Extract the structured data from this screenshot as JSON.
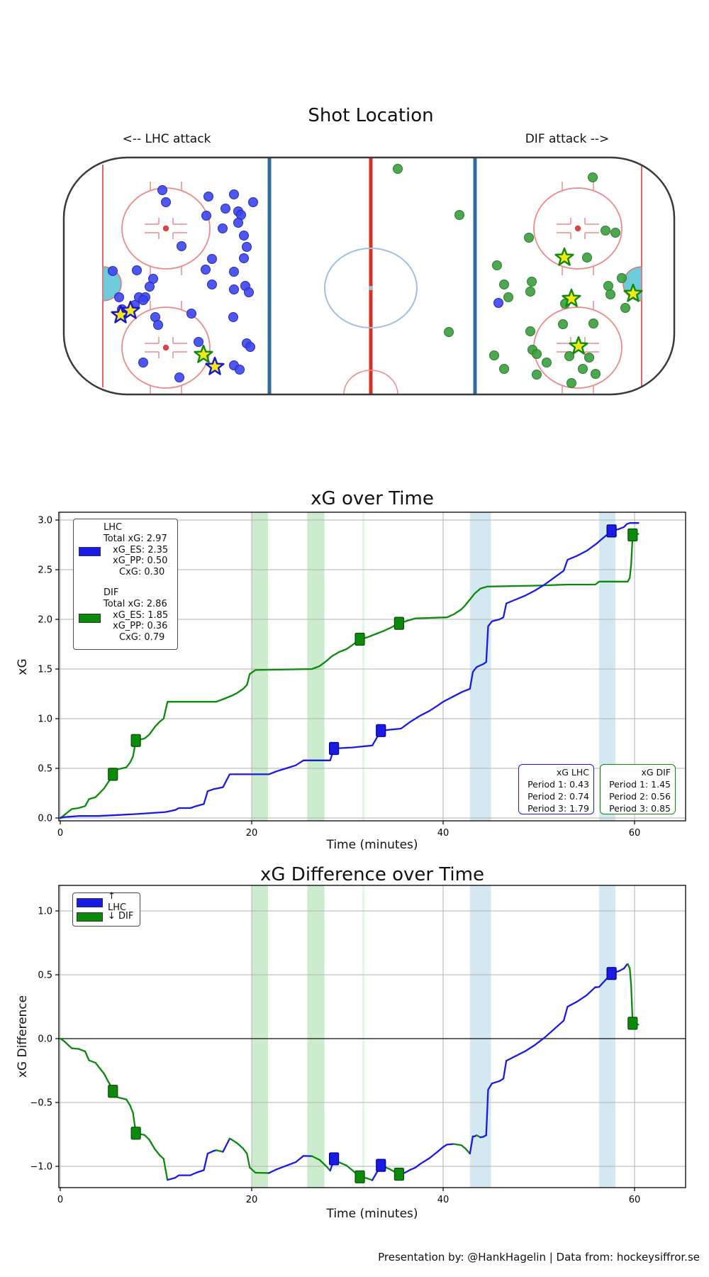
{
  "page": {
    "title_shot": "Shot Location",
    "lhc_attack_label": "<-- LHC attack",
    "dif_attack_label": "DIF attack -->",
    "footer": "Presentation by: @HankHagelin | Data from: hockeysiffror.se"
  },
  "colors": {
    "lhc": "#1a1ae6",
    "lhc_edge": "#00008b",
    "dif": "#0c8a0c",
    "dif_edge": "#064d06",
    "shot_lhc": "#3c45ef",
    "shot_lhc_edge": "#2a2ab8",
    "shot_dif": "#38a03c",
    "shot_dif_edge": "#2d7a30",
    "star_fill": "#f5e616",
    "band_green": "#cdeccd",
    "band_green_thin": "#e4f6e4",
    "band_blue": "#d3e8f1",
    "grid": "#b3b3b3",
    "rink_border": "#3a3a3a",
    "rink_red": "#e06666",
    "rink_faceoff": "#ef8a8a",
    "rink_blue_line": "#2e6b9e",
    "rink_center_line": "#d93025",
    "rink_center_circle": "#9fc0e0",
    "crease_fill": "#6fcbdc",
    "crease_edge": "#dd7777"
  },
  "rink": {
    "shots_lhc": [
      [
        229,
        268
      ],
      [
        234,
        285
      ],
      [
        294,
        277
      ],
      [
        330,
        274
      ],
      [
        357,
        285
      ],
      [
        318,
        294
      ],
      [
        336,
        298
      ],
      [
        340,
        303
      ],
      [
        291,
        304
      ],
      [
        336,
        314
      ],
      [
        314,
        322
      ],
      [
        344,
        332
      ],
      [
        256,
        347
      ],
      [
        348,
        348
      ],
      [
        344,
        364
      ],
      [
        299,
        365
      ],
      [
        290,
        380
      ],
      [
        330,
        383
      ],
      [
        159,
        382
      ],
      [
        193,
        381
      ],
      [
        216,
        393
      ],
      [
        299,
        401
      ],
      [
        211,
        404
      ],
      [
        346,
        403
      ],
      [
        330,
        408
      ],
      [
        351,
        412
      ],
      [
        168,
        419
      ],
      [
        196,
        419
      ],
      [
        205,
        419
      ],
      [
        202,
        423
      ],
      [
        172,
        436
      ],
      [
        190,
        430
      ],
      [
        270,
        442
      ],
      [
        219,
        447
      ],
      [
        329,
        447
      ],
      [
        223,
        458
      ],
      [
        280,
        482
      ],
      [
        348,
        484
      ],
      [
        353,
        489
      ],
      [
        202,
        511
      ],
      [
        330,
        515
      ],
      [
        338,
        521
      ],
      [
        253,
        532
      ],
      [
        703,
        427
      ]
    ],
    "shots_dif": [
      [
        561,
        238
      ],
      [
        648,
        303
      ],
      [
        836,
        250
      ],
      [
        854,
        325
      ],
      [
        868,
        328
      ],
      [
        746,
        335
      ],
      [
        828,
        363
      ],
      [
        701,
        374
      ],
      [
        711,
        401
      ],
      [
        750,
        397
      ],
      [
        748,
        411
      ],
      [
        717,
        419
      ],
      [
        858,
        403
      ],
      [
        877,
        392
      ],
      [
        861,
        415
      ],
      [
        882,
        434
      ],
      [
        797,
        428
      ],
      [
        794,
        457
      ],
      [
        837,
        456
      ],
      [
        748,
        467
      ],
      [
        633,
        468
      ],
      [
        697,
        501
      ],
      [
        751,
        493
      ],
      [
        757,
        499
      ],
      [
        803,
        502
      ],
      [
        831,
        504
      ],
      [
        771,
        511
      ],
      [
        711,
        520
      ],
      [
        822,
        520
      ],
      [
        757,
        528
      ],
      [
        840,
        527
      ],
      [
        806,
        540
      ]
    ],
    "goals_lhc": [
      [
        170,
        444
      ],
      [
        184,
        438
      ],
      [
        303,
        517
      ]
    ],
    "goals_dif": [
      [
        287,
        500
      ],
      [
        796,
        363
      ],
      [
        806,
        421
      ],
      [
        893,
        414
      ],
      [
        816,
        488
      ]
    ]
  },
  "chart_data": [
    {
      "type": "line",
      "title": "xG over Time",
      "xlabel": "Time (minutes)",
      "ylabel": "xG",
      "xlim": [
        -0.15,
        65.3
      ],
      "ylim": [
        -0.03,
        3.08
      ],
      "grid": true,
      "legend_position": "upper left",
      "xticks": {
        "values": [
          0,
          20,
          40,
          60
        ],
        "labels": [
          "0",
          "20",
          "40",
          "60"
        ]
      },
      "yticks": {
        "values": [
          0,
          0.5,
          1,
          1.5,
          2,
          2.5,
          3
        ],
        "labels": [
          "0.0",
          "0.5",
          "1.0",
          "1.5",
          "2.0",
          "2.5",
          "3.0"
        ]
      },
      "bands": [
        {
          "x0": 20.0,
          "x1": 21.7,
          "color": "band_green"
        },
        {
          "x0": 25.8,
          "x1": 27.6,
          "color": "band_green"
        },
        {
          "x0": 31.55,
          "x1": 31.8,
          "color": "band_green_thin"
        },
        {
          "x0": 42.8,
          "x1": 45.0,
          "color": "band_blue"
        },
        {
          "x0": 56.3,
          "x1": 58.0,
          "color": "band_blue"
        }
      ],
      "series": [
        {
          "name": "LHC",
          "color": "lhc",
          "edge": "lhc_edge",
          "goal_times": [
            28.6,
            33.5,
            57.6
          ],
          "points": [
            [
              0,
              0
            ],
            [
              0.5,
              0.01
            ],
            [
              2,
              0.02
            ],
            [
              4,
              0.02
            ],
            [
              6,
              0.03
            ],
            [
              8,
              0.04
            ],
            [
              9.5,
              0.05
            ],
            [
              11,
              0.06
            ],
            [
              12,
              0.08
            ],
            [
              12.4,
              0.1
            ],
            [
              13.6,
              0.1
            ],
            [
              14.2,
              0.12
            ],
            [
              15,
              0.14
            ],
            [
              15.4,
              0.27
            ],
            [
              16,
              0.29
            ],
            [
              17,
              0.31
            ],
            [
              17.7,
              0.44
            ],
            [
              21.8,
              0.44
            ],
            [
              22.6,
              0.47
            ],
            [
              23.6,
              0.5
            ],
            [
              24.6,
              0.53
            ],
            [
              25.4,
              0.58
            ],
            [
              28.2,
              0.58
            ],
            [
              28.6,
              0.7
            ],
            [
              30.5,
              0.71
            ],
            [
              32.6,
              0.73
            ],
            [
              33.5,
              0.88
            ],
            [
              35.6,
              0.9
            ],
            [
              36.6,
              0.97
            ],
            [
              37.6,
              1.03
            ],
            [
              38.6,
              1.08
            ],
            [
              39.4,
              1.13
            ],
            [
              40,
              1.17
            ],
            [
              41,
              1.22
            ],
            [
              42,
              1.27
            ],
            [
              42.8,
              1.3
            ],
            [
              43.1,
              1.47
            ],
            [
              43.5,
              1.52
            ],
            [
              44.2,
              1.55
            ],
            [
              44.5,
              1.57
            ],
            [
              44.7,
              1.93
            ],
            [
              45.1,
              1.98
            ],
            [
              45.9,
              2.0
            ],
            [
              46.3,
              2.02
            ],
            [
              46.6,
              2.16
            ],
            [
              47.6,
              2.2
            ],
            [
              48.6,
              2.24
            ],
            [
              49.6,
              2.29
            ],
            [
              50.6,
              2.35
            ],
            [
              51.6,
              2.42
            ],
            [
              52.6,
              2.49
            ],
            [
              53,
              2.6
            ],
            [
              54,
              2.64
            ],
            [
              55,
              2.69
            ],
            [
              56,
              2.76
            ],
            [
              56.6,
              2.81
            ],
            [
              57.1,
              2.85
            ],
            [
              57.6,
              2.89
            ],
            [
              58.4,
              2.91
            ],
            [
              58.9,
              2.93
            ],
            [
              59.2,
              2.96
            ],
            [
              59.5,
              2.97
            ],
            [
              60.4,
              2.97
            ]
          ]
        },
        {
          "name": "DIF",
          "color": "dif",
          "edge": "dif_edge",
          "goal_times": [
            5.5,
            7.9,
            31.3,
            35.4,
            59.8
          ],
          "points": [
            [
              0,
              0
            ],
            [
              0.3,
              0.02
            ],
            [
              0.8,
              0.06
            ],
            [
              1.2,
              0.09
            ],
            [
              1.9,
              0.1
            ],
            [
              2.6,
              0.12
            ],
            [
              3.0,
              0.19
            ],
            [
              3.7,
              0.21
            ],
            [
              4.2,
              0.26
            ],
            [
              4.6,
              0.3
            ],
            [
              5.0,
              0.36
            ],
            [
              5.3,
              0.4
            ],
            [
              5.5,
              0.44
            ],
            [
              6.0,
              0.49
            ],
            [
              6.9,
              0.51
            ],
            [
              7.3,
              0.56
            ],
            [
              7.6,
              0.62
            ],
            [
              7.9,
              0.78
            ],
            [
              8.8,
              0.8
            ],
            [
              9.3,
              0.84
            ],
            [
              9.9,
              0.92
            ],
            [
              10.4,
              0.97
            ],
            [
              10.8,
              1.0
            ],
            [
              11.2,
              1.17
            ],
            [
              16.3,
              1.17
            ],
            [
              17.1,
              1.2
            ],
            [
              17.9,
              1.23
            ],
            [
              18.5,
              1.26
            ],
            [
              19.1,
              1.3
            ],
            [
              19.5,
              1.34
            ],
            [
              19.8,
              1.45
            ],
            [
              20.4,
              1.49
            ],
            [
              26.3,
              1.5
            ],
            [
              27.1,
              1.53
            ],
            [
              27.8,
              1.58
            ],
            [
              28.4,
              1.63
            ],
            [
              29.1,
              1.67
            ],
            [
              29.9,
              1.7
            ],
            [
              30.5,
              1.74
            ],
            [
              31.3,
              1.8
            ],
            [
              32.1,
              1.82
            ],
            [
              32.9,
              1.85
            ],
            [
              33.7,
              1.88
            ],
            [
              34.4,
              1.91
            ],
            [
              35.4,
              1.96
            ],
            [
              36.4,
              1.99
            ],
            [
              37.1,
              2.01
            ],
            [
              40.4,
              2.02
            ],
            [
              41.1,
              2.05
            ],
            [
              41.9,
              2.1
            ],
            [
              42.3,
              2.14
            ],
            [
              42.8,
              2.2
            ],
            [
              43.3,
              2.26
            ],
            [
              43.9,
              2.31
            ],
            [
              44.6,
              2.33
            ],
            [
              50,
              2.34
            ],
            [
              53,
              2.35
            ],
            [
              55.9,
              2.35
            ],
            [
              56.3,
              2.38
            ],
            [
              59.3,
              2.38
            ],
            [
              59.5,
              2.42
            ],
            [
              59.65,
              2.56
            ],
            [
              59.8,
              2.85
            ],
            [
              60.4,
              2.86
            ]
          ]
        }
      ],
      "legend_stats": {
        "lhc": [
          "LHC",
          "Total xG: 2.97",
          "xG_ES: 2.35",
          "xG_PP: 0.50",
          "CxG: 0.30"
        ],
        "dif": [
          "DIF",
          "Total xG: 2.86",
          "xG_ES: 1.85",
          "xG_PP: 0.36",
          "CxG: 0.79"
        ]
      },
      "period_boxes": [
        {
          "title": "xG LHC",
          "lines": [
            "Period 1: 0.43",
            "Period 2: 0.74",
            "Period 3: 1.79"
          ]
        },
        {
          "title": "xG DIF",
          "lines": [
            "Period 1: 1.45",
            "Period 2: 0.56",
            "Period 3: 0.85"
          ]
        }
      ]
    },
    {
      "type": "line",
      "title": "xG Difference over Time",
      "xlabel": "Time (minutes)",
      "ylabel": "xG Difference",
      "xlim": [
        -0.15,
        65.3
      ],
      "ylim": [
        -1.17,
        1.2
      ],
      "grid": true,
      "zero_line": true,
      "derivation": "LHC cumulative xG minus DIF cumulative xG; rising segments blue, falling segments green",
      "xticks": {
        "values": [
          0,
          20,
          40,
          60
        ],
        "labels": [
          "0",
          "20",
          "40",
          "60"
        ]
      },
      "yticks": {
        "values": [
          1,
          0.5,
          0,
          -0.5,
          -1
        ],
        "labels": [
          "1.0",
          "0.5",
          "0.0",
          "−0.5",
          "−1.0"
        ]
      },
      "bands": [
        {
          "x0": 20.0,
          "x1": 21.7,
          "color": "band_green"
        },
        {
          "x0": 25.8,
          "x1": 27.6,
          "color": "band_green"
        },
        {
          "x0": 31.55,
          "x1": 31.8,
          "color": "band_green_thin"
        },
        {
          "x0": 42.8,
          "x1": 45.0,
          "color": "band_blue"
        },
        {
          "x0": 56.3,
          "x1": 58.0,
          "color": "band_blue"
        }
      ],
      "legend": [
        {
          "label": "↑ LHC",
          "color": "lhc"
        },
        {
          "label": "↓ DIF",
          "color": "dif"
        }
      ],
      "markers": {
        "lhc_times": [
          28.6,
          33.5,
          57.6
        ],
        "dif_times": [
          5.5,
          7.9,
          31.3,
          35.4,
          59.8
        ]
      }
    }
  ]
}
